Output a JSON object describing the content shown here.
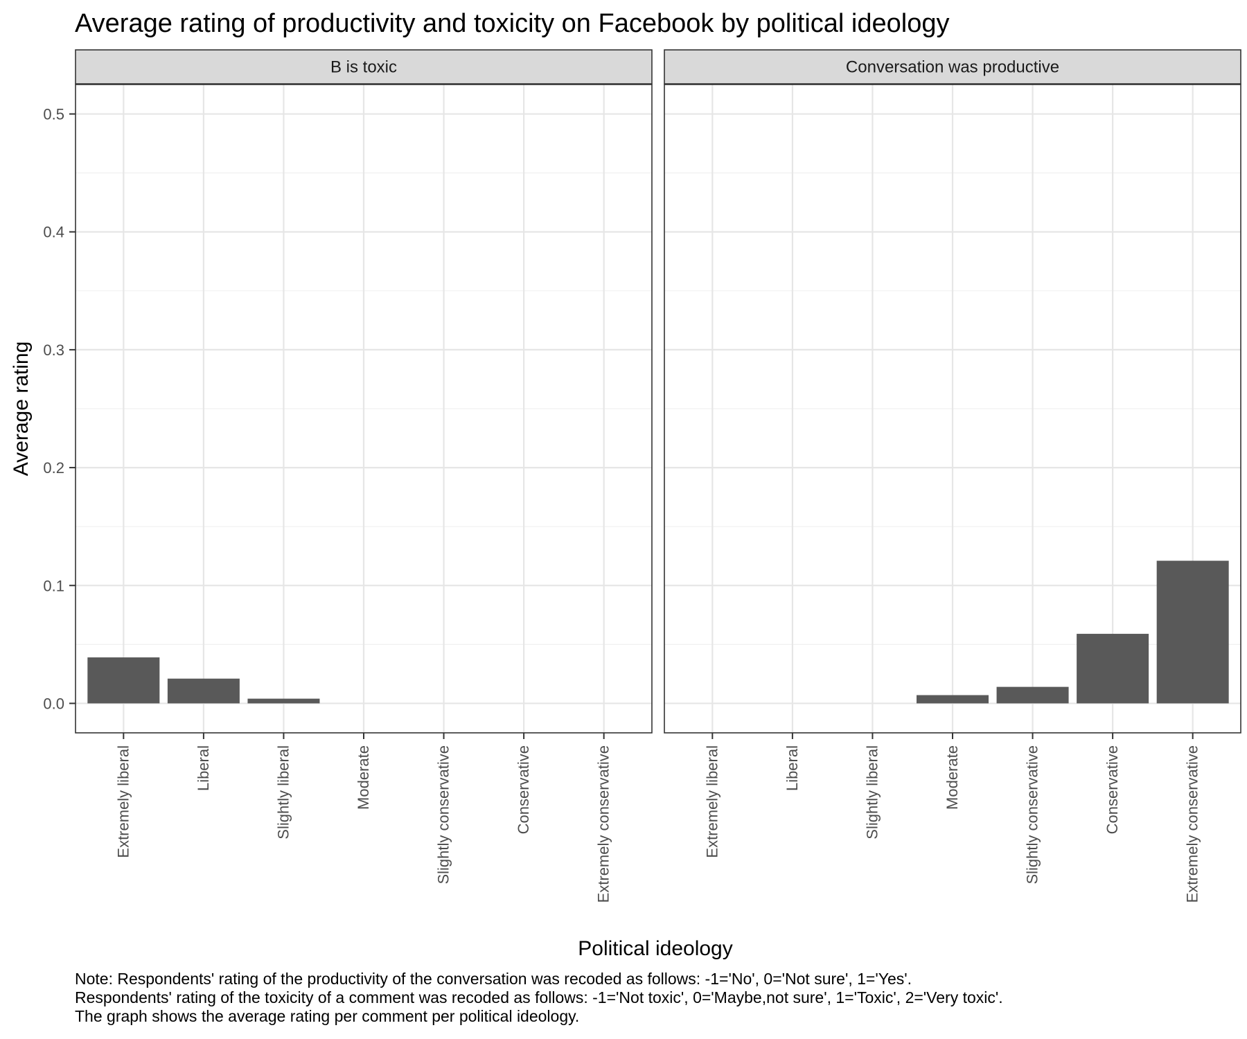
{
  "chart_data": {
    "type": "bar",
    "title": "Average rating of productivity and toxicity on Facebook by political ideology",
    "xlabel": "Political ideology",
    "ylabel": "Average rating",
    "ylim": [
      -0.025,
      0.525
    ],
    "yticks": [
      "0.0",
      "0.1",
      "0.2",
      "0.3",
      "0.4",
      "0.5"
    ],
    "ytick_values": [
      0,
      0.1,
      0.2,
      0.3,
      0.4,
      0.5
    ],
    "grid": true,
    "bar_color": "#595959",
    "categories": [
      "Extremely liberal",
      "Liberal",
      "Slightly liberal",
      "Moderate",
      "Slightly conservative",
      "Conservative",
      "Extremely conservative"
    ],
    "facets": [
      {
        "name": "B is toxic",
        "values": [
          0.039,
          0.021,
          0.004,
          0,
          0,
          0,
          0
        ]
      },
      {
        "name": "Conversation was productive",
        "values": [
          0,
          0,
          0,
          0.007,
          0.014,
          0.059,
          0.121
        ]
      }
    ],
    "note": [
      "Note: Respondents' rating of the productivity of the conversation was recoded as follows: -1='No', 0='Not sure', 1='Yes'.",
      "Respondents' rating of the toxicity of a comment was recoded as follows: -1='Not toxic', 0='Maybe,not sure', 1='Toxic', 2='Very toxic'.",
      "The graph shows the average rating per comment per political ideology."
    ]
  }
}
